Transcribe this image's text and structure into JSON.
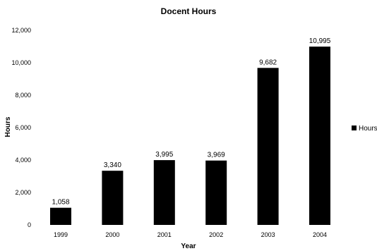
{
  "chart_data": {
    "type": "bar",
    "title": "Docent Hours",
    "xlabel": "Year",
    "ylabel": "Hours",
    "categories": [
      "1999",
      "2000",
      "2001",
      "2002",
      "2003",
      "2004"
    ],
    "series": [
      {
        "name": "Hours",
        "values": [
          1058,
          3340,
          3995,
          3969,
          9682,
          10995
        ],
        "labels": [
          "1,058",
          "3,340",
          "3,995",
          "3,969",
          "9,682",
          "10,995"
        ],
        "color": "#000000"
      }
    ],
    "ylim": [
      0,
      12000
    ],
    "yticks": [
      0,
      2000,
      4000,
      6000,
      8000,
      10000,
      12000
    ],
    "ytick_labels": [
      "0",
      "2,000",
      "4,000",
      "6,000",
      "8,000",
      "10,000",
      "12,000"
    ],
    "grid": false,
    "legend_position": "right"
  }
}
